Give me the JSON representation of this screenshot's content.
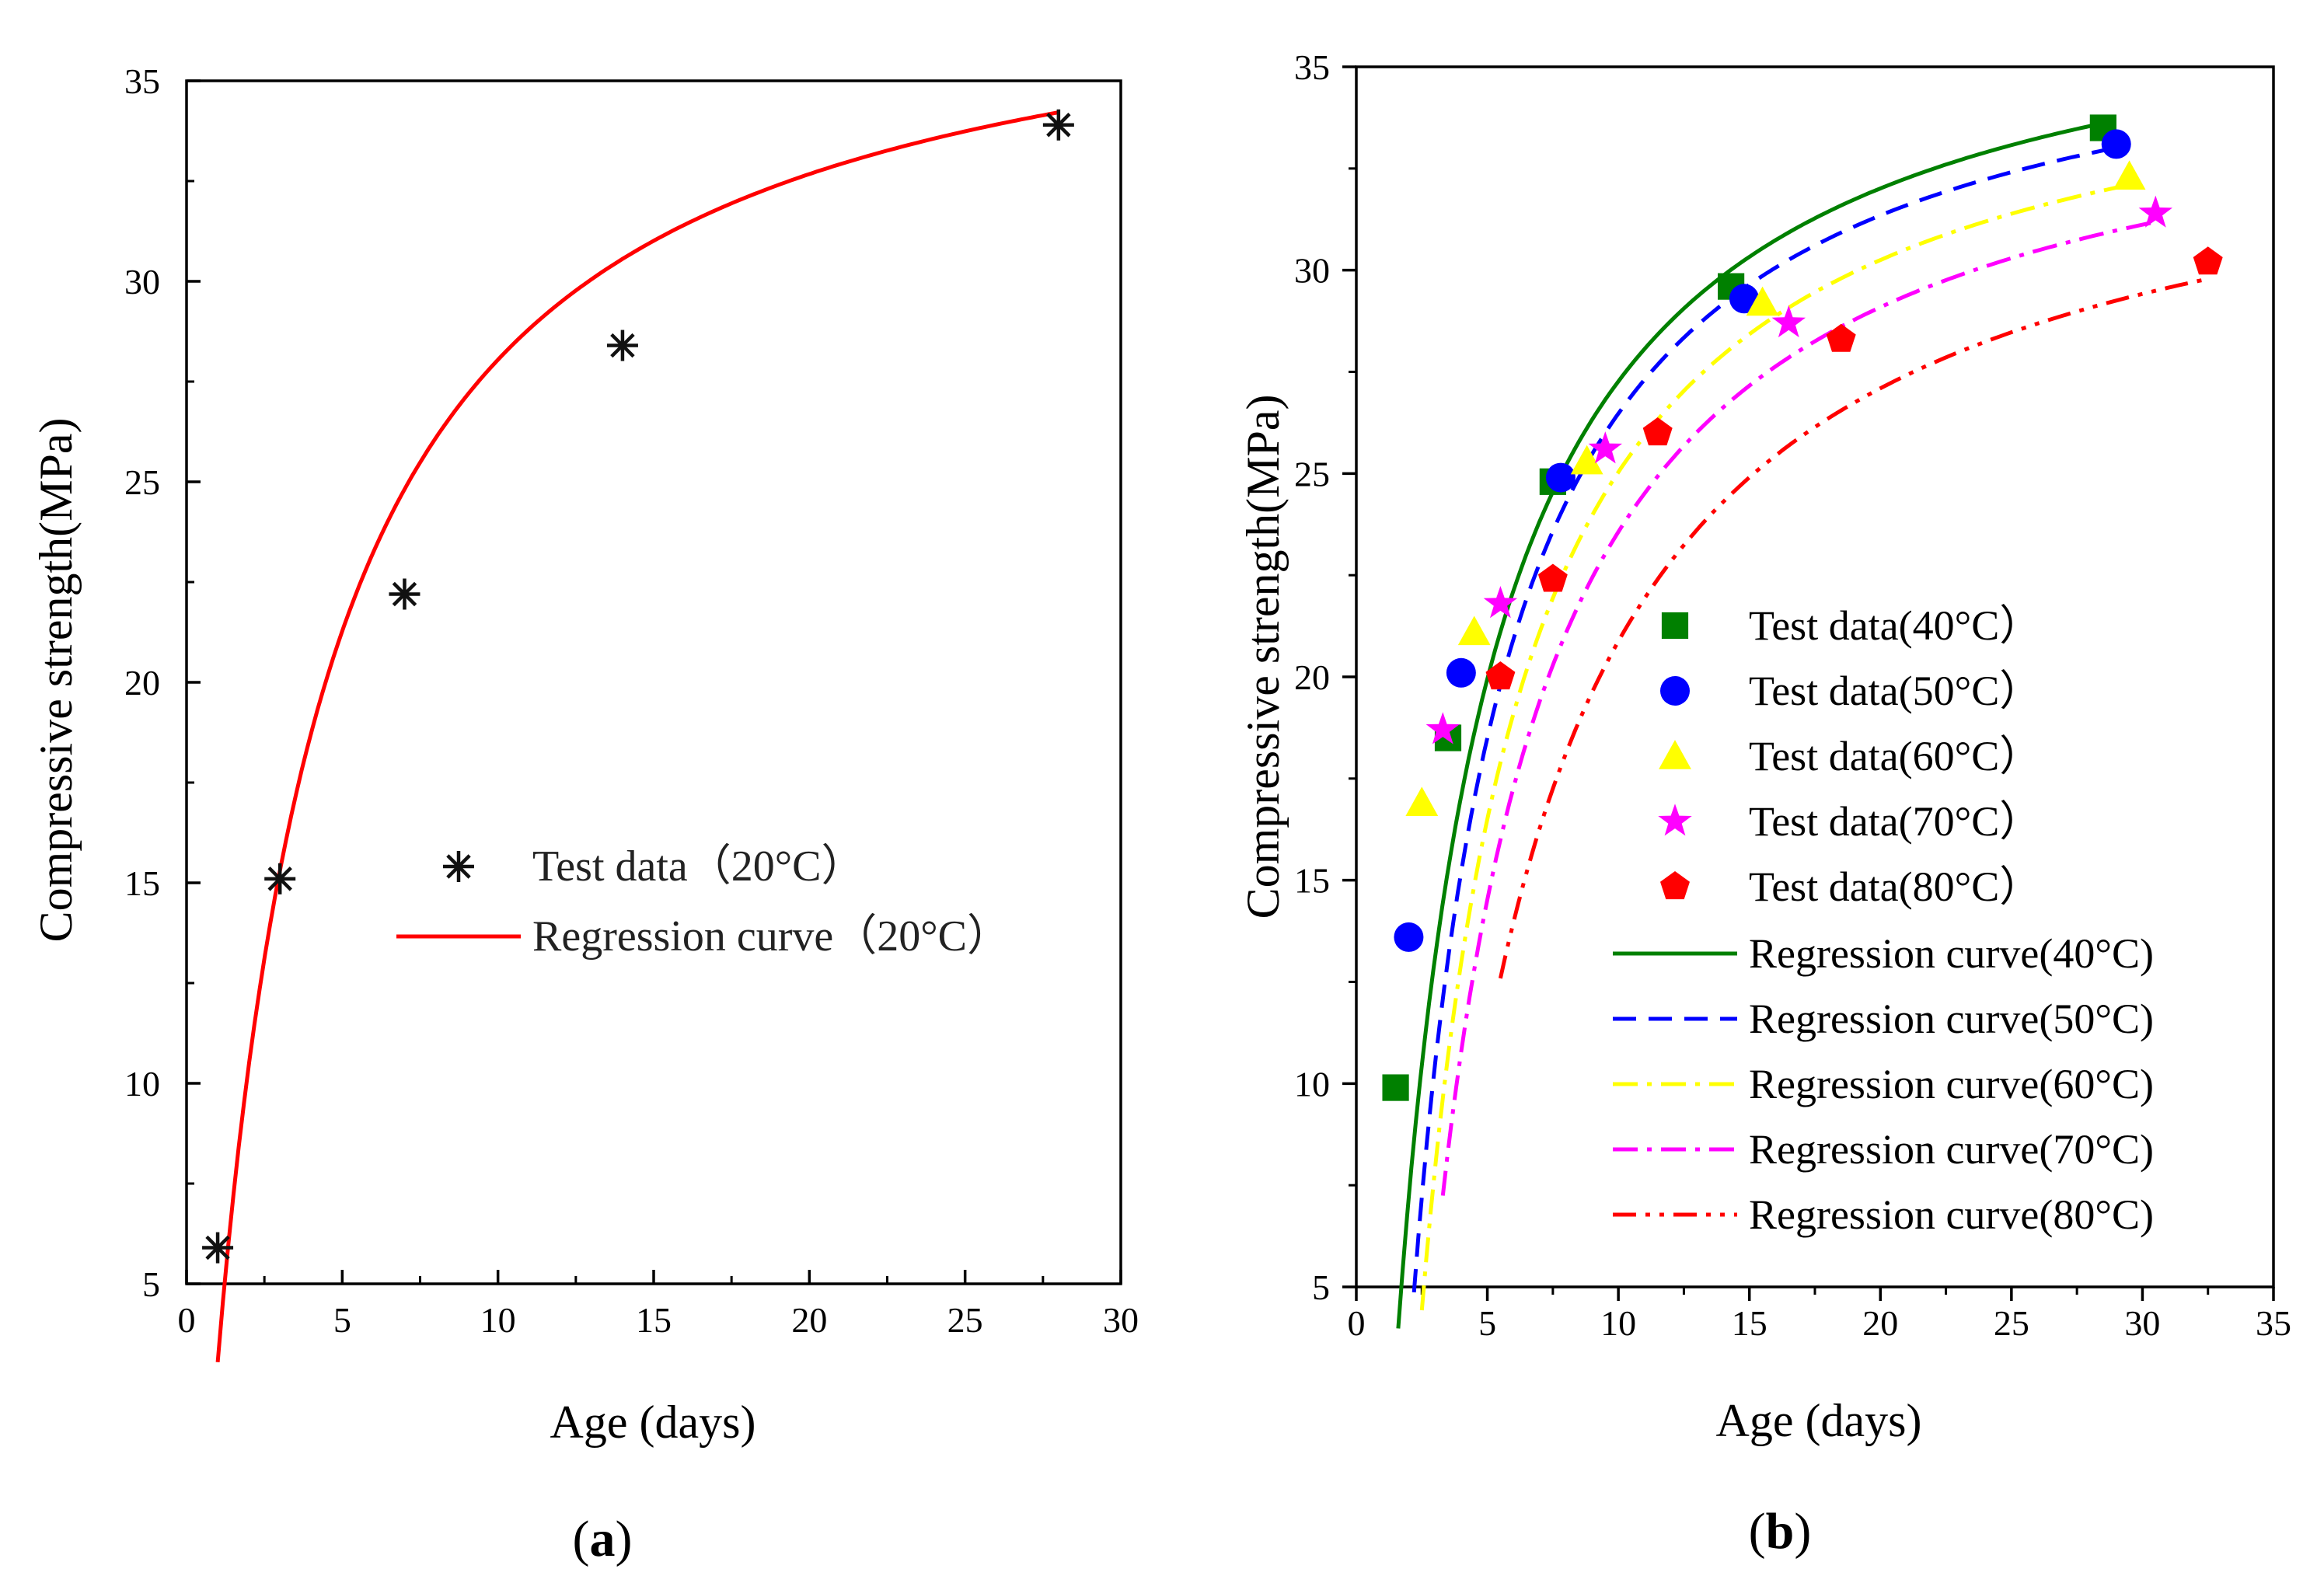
{
  "chart_data": [
    {
      "id": "a",
      "type": "scatter",
      "caption_open": "(",
      "caption_letter": "a",
      "caption_close": ")",
      "xlabel": "Age (days)",
      "ylabel": "Compressive strength(MPa)",
      "xlim": [
        0,
        30
      ],
      "ylim": [
        5,
        35
      ],
      "xticks": [
        0,
        5,
        10,
        15,
        20,
        25,
        30
      ],
      "yticks": [
        5,
        10,
        15,
        20,
        25,
        30,
        35
      ],
      "legend_position": "center-right",
      "series": [
        {
          "name": "Test data（20°C）",
          "kind": "markers",
          "marker": "asterisk",
          "color": "#111111",
          "x": [
            1,
            3,
            7,
            14,
            28
          ],
          "y": [
            5.9,
            15.1,
            22.2,
            28.4,
            33.9
          ]
        },
        {
          "name": "Regression curve（20°C）",
          "kind": "line",
          "dash": "solid",
          "color": "#ff0000",
          "model": {
            "t0": 0.7,
            "ymax": 38.6,
            "b": 3.5
          },
          "x_range": [
            1,
            28
          ]
        }
      ]
    },
    {
      "id": "b",
      "type": "scatter",
      "caption_open": "(",
      "caption_letter": "b",
      "caption_close": ")",
      "xlabel": "Age (days)",
      "ylabel": "Compressive strength(MPa)",
      "xlim": [
        0,
        35
      ],
      "ylim": [
        5,
        35
      ],
      "xticks": [
        0,
        5,
        10,
        15,
        20,
        25,
        30,
        35
      ],
      "yticks": [
        5,
        10,
        15,
        20,
        25,
        30,
        35
      ],
      "legend_position": "bottom-right",
      "series": [
        {
          "name": "Test data(40°C）",
          "kind": "markers",
          "marker": "square",
          "color": "#008000",
          "x": [
            1.5,
            3.5,
            7.5,
            14.3,
            28.5
          ],
          "y": [
            9.9,
            18.5,
            24.8,
            29.6,
            33.5
          ]
        },
        {
          "name": "Test data(50°C）",
          "kind": "markers",
          "marker": "circle",
          "color": "#0000ff",
          "x": [
            2,
            4,
            7.8,
            14.8,
            29
          ],
          "y": [
            13.6,
            20.1,
            24.9,
            29.3,
            33.1
          ]
        },
        {
          "name": "Test data(60°C）",
          "kind": "markers",
          "marker": "triangle",
          "color": "#ffff00",
          "x": [
            2.5,
            4.5,
            8.8,
            15.5,
            29.5
          ],
          "y": [
            16.9,
            21.1,
            25.3,
            29.2,
            32.3
          ]
        },
        {
          "name": "Test data(70°C）",
          "kind": "markers",
          "marker": "star",
          "color": "#ff00ff",
          "x": [
            3.3,
            5.5,
            9.5,
            16.5,
            30.5
          ],
          "y": [
            18.7,
            21.8,
            25.6,
            28.7,
            31.4
          ]
        },
        {
          "name": "Test data(80°C）",
          "kind": "markers",
          "marker": "pentagon",
          "color": "#ff0000",
          "x": [
            5.5,
            7.5,
            11.5,
            18.5,
            32.5
          ],
          "y": [
            20,
            22.4,
            26,
            28.3,
            30.2
          ]
        },
        {
          "name": "Regression curve(40°C)",
          "kind": "line",
          "dash": "solid",
          "color": "#008000",
          "model": {
            "t0": 1.2,
            "ymax": 37.8,
            "b": 3.4
          },
          "x_range": [
            1.6,
            28.5
          ]
        },
        {
          "name": "Regression curve(50°C)",
          "kind": "line",
          "dash": "dash",
          "color": "#0000ff",
          "model": {
            "t0": 1.7,
            "ymax": 37.0,
            "b": 3.3
          },
          "x_range": [
            2.2,
            29
          ]
        },
        {
          "name": "Regression curve(60°C)",
          "kind": "line",
          "dash": "dashdot",
          "color": "#ffff00",
          "model": {
            "t0": 2.0,
            "ymax": 36.3,
            "b": 3.6
          },
          "x_range": [
            2.5,
            29.5
          ]
        },
        {
          "name": "Regression curve(70°C)",
          "kind": "line",
          "dash": "dashdot",
          "color": "#ff00ff",
          "model": {
            "t0": 2.3,
            "ymax": 35.5,
            "b": 3.9
          },
          "x_range": [
            3.3,
            30.5
          ]
        },
        {
          "name": "Regression curve(80°C)",
          "kind": "line",
          "dash": "dashdotdot",
          "color": "#ff0000",
          "model": {
            "t0": 2.8,
            "ymax": 34.5,
            "b": 4.7
          },
          "x_range": [
            5.5,
            32.5
          ]
        }
      ]
    }
  ]
}
